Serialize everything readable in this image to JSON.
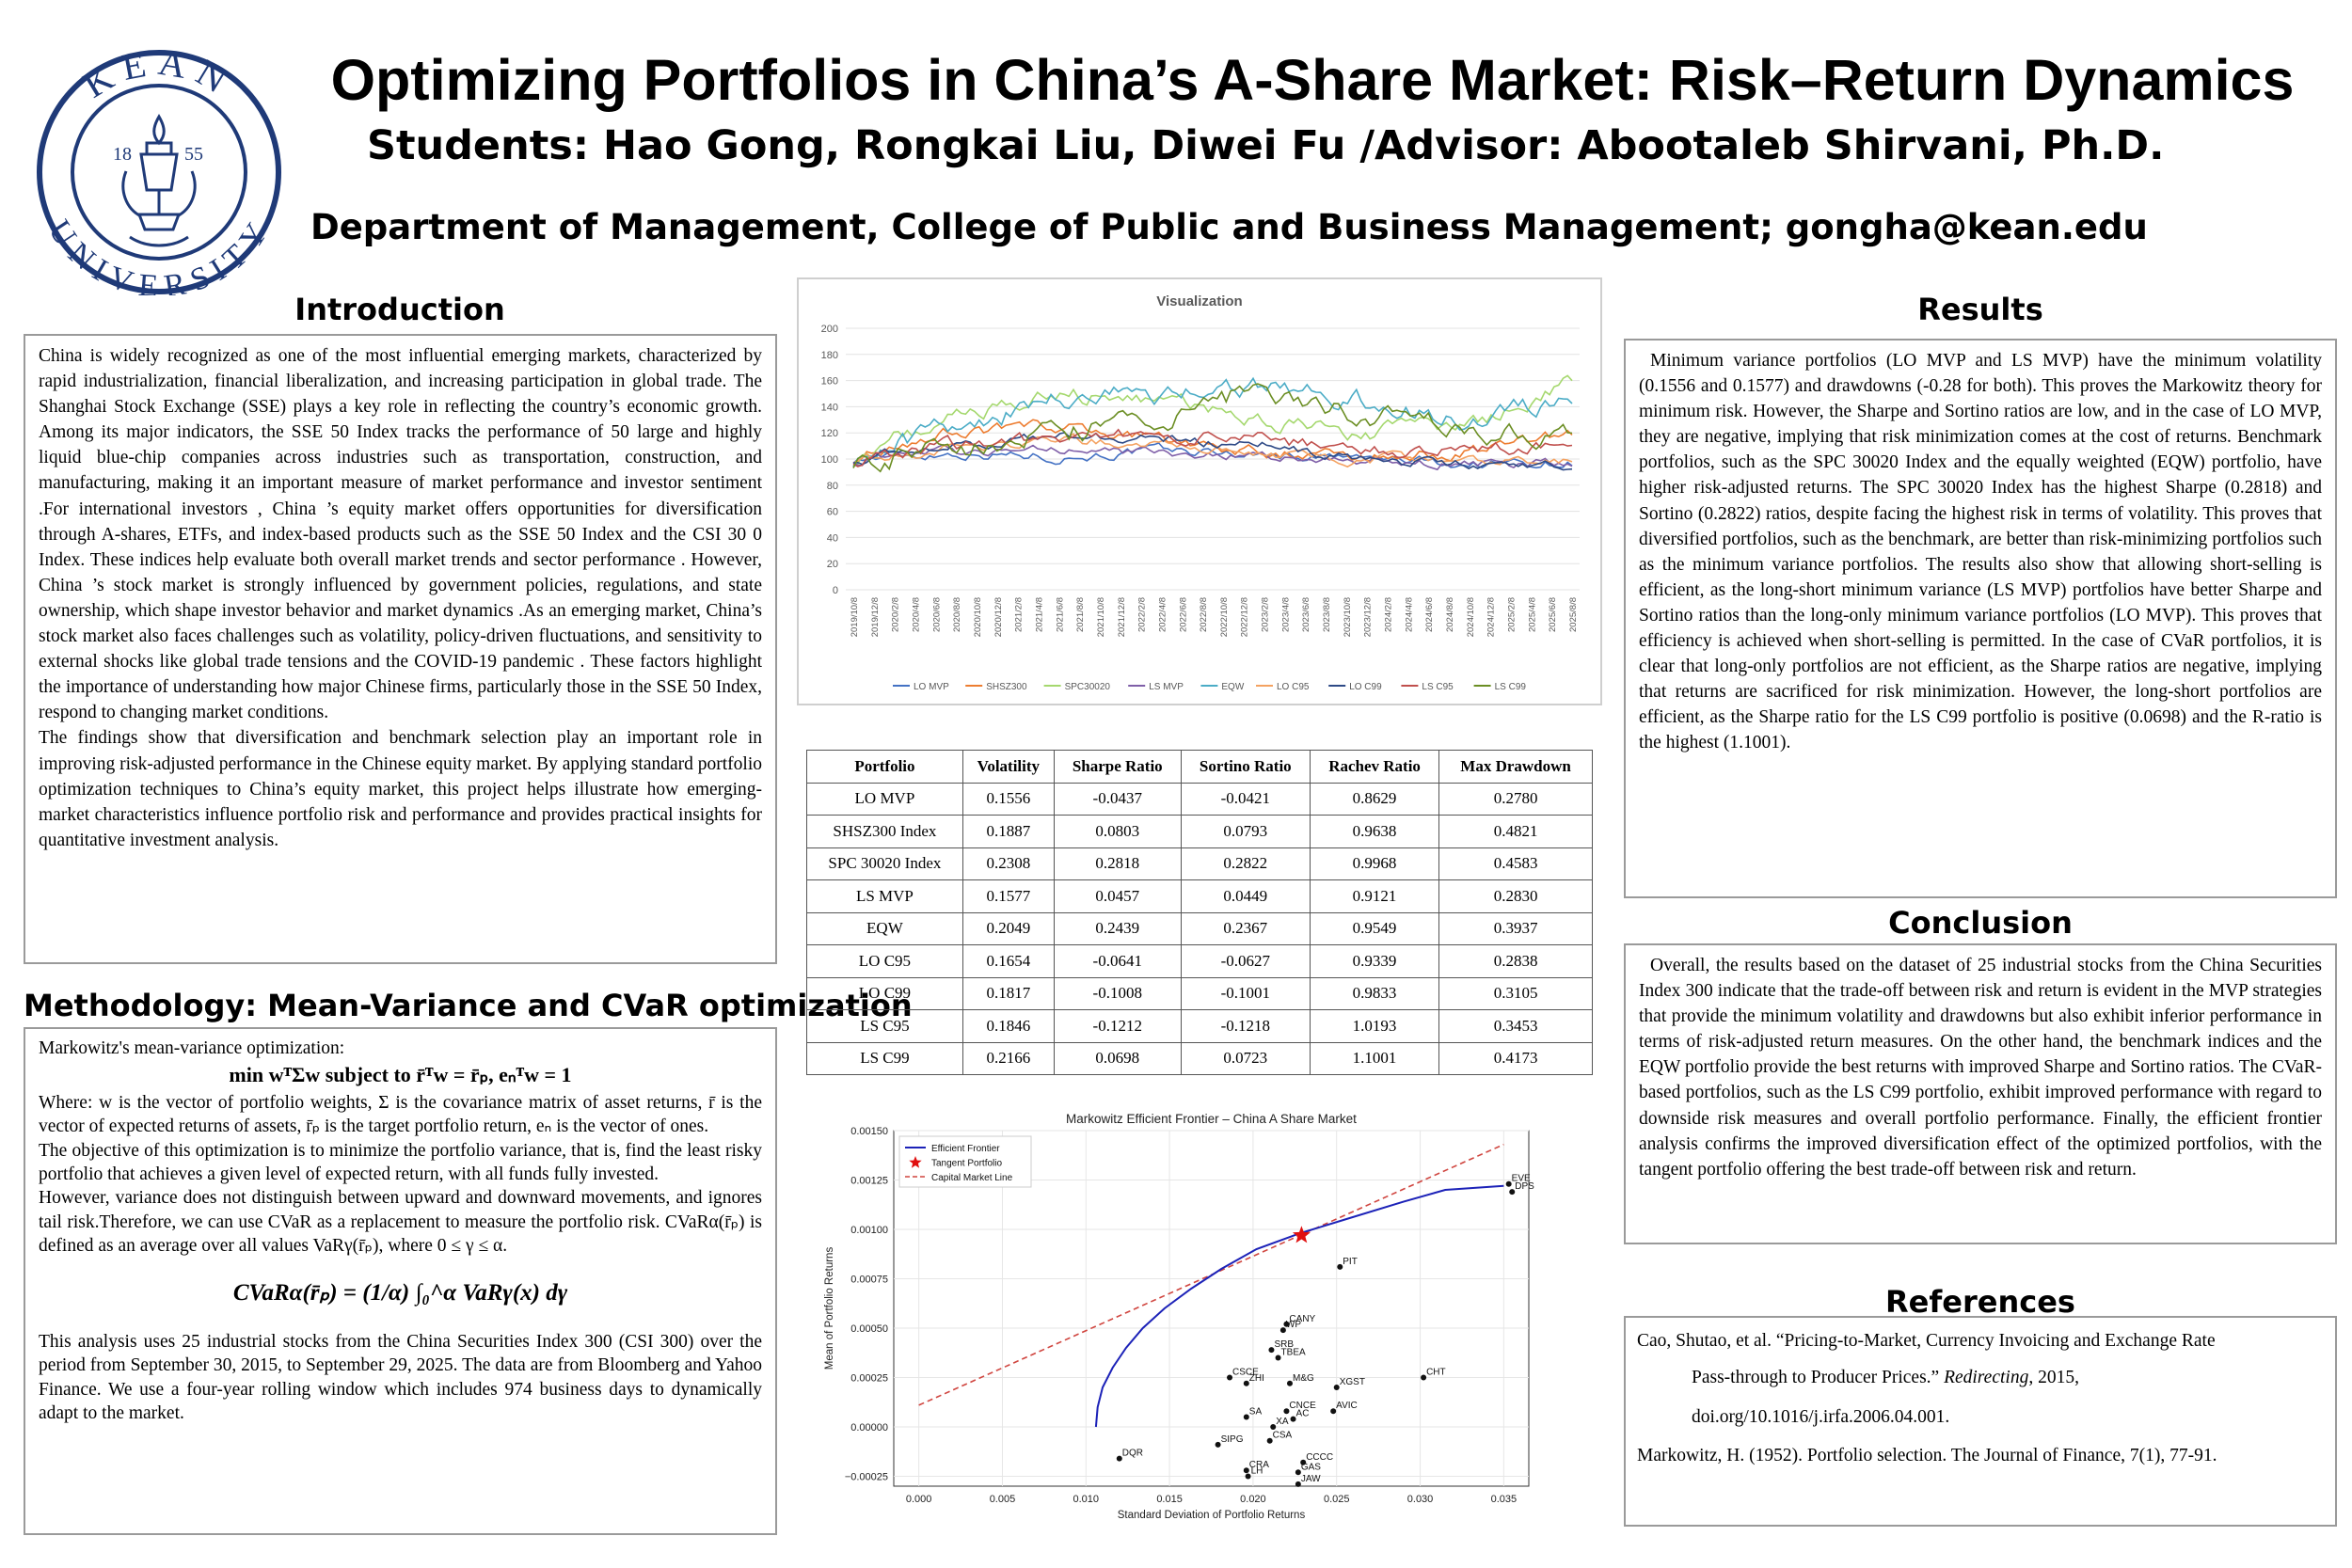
{
  "header": {
    "title": "Optimizing  Portfolios  in China’s A-Share  Market:  Risk–Return  Dynamics",
    "subtitle": "Students:  Hao Gong,  Rongkai  Liu,  Diwei  Fu /Advisor: Abootaleb Shirvani,  Ph.D.",
    "department": "Department of  Management, College of  Public and  Business  Management; gongha@kean.edu",
    "logo": {
      "ring_top": "KEAN",
      "ring_bottom": "UNIVERSITY",
      "year_left": "18",
      "year_right": "55"
    }
  },
  "introduction": {
    "heading": "Introduction",
    "paragraphs": [
      "China is widely recognized as one of the most influential emerging markets, characterized by rapid industrialization, financial liberalization, and increasing participation in global trade. The Shanghai Stock Exchange (SSE) plays a key role in reflecting the country’s economic growth. Among its major indicators, the SSE 50 Index tracks the performance of 50 large and highly liquid blue-chip companies across industries such as transportation, construction, and manufacturing, making it an important measure of market performance and investor sentiment .For international investors , China ’s equity market offers opportunities for diversification through A-shares, ETFs, and index-based products such as the SSE 50 Index and the CSI 30 0 Index. These indices help evaluate both overall market trends and sector performance . However, China ’s stock market is strongly influenced by government policies, regulations, and state ownership, which shape investor behavior and market dynamics .As an emerging market, China’s stock market also faces challenges such as volatility, policy-driven fluctuations, and sensitivity to external shocks like global trade tensions and the COVID-19 pandemic . These factors highlight the importance of understanding how major Chinese firms, particularly those in the SSE 50 Index, respond to changing market conditions.",
      "The findings show that diversification and benchmark selection play an important role in improving risk-adjusted performance in the Chinese equity market. By applying standard portfolio optimization techniques to China’s equity market, this project helps illustrate how emerging-market characteristics influence portfolio risk and performance and provides practical insights for quantitative investment analysis."
    ]
  },
  "methodology": {
    "heading": "Methodology:  Mean-Variance and CVaR optimization",
    "intro": "Markowitz's mean-variance optimization:",
    "formula": "min  wᵀΣw    subject to r̄ᵀw = r̄ₚ, eₙᵀw = 1",
    "where": "Where: w is the vector of portfolio weights, Σ is the covariance matrix of asset returns, r̄ is the vector of expected returns of assets, r̄ₚ is the target portfolio return, eₙ is the vector of ones.",
    "objective": "The objective of this optimization is to minimize the portfolio variance, that is, find the least risky portfolio that achieves a given level of expected return, with all funds fully invested.",
    "however": "However, variance does not distinguish between upward and downward movements, and ignores tail risk.Therefore, we can use CVaR as a replacement to measure the portfolio risk. CVaRα(r̄ₚ) is defined as an average over all values VaRγ(r̄ₚ), where 0 ≤ γ ≤ α.",
    "cvar_formula": "CVaRα(r̄ₚ) = (1/α) ∫₀^α VaRγ(x) dγ",
    "data": "This analysis uses 25 industrial stocks from the China Securities Index 300 (CSI 300) over the period from September 30, 2015, to September 29, 2025. The data are from Bloomberg and Yahoo Finance. We use a four-year rolling window which includes 974 business days to dynamically adapt to the market."
  },
  "visualization": {
    "title": "Visualization",
    "y_ticks": [
      "200",
      "180",
      "160",
      "140",
      "120",
      "100",
      "80",
      "60",
      "40",
      "20",
      "0"
    ],
    "x_ticks": [
      "2019/10/8",
      "2019/12/8",
      "2020/2/8",
      "2020/4/8",
      "2020/6/8",
      "2020/8/8",
      "2020/10/8",
      "2020/12/8",
      "2021/2/8",
      "2021/4/8",
      "2021/6/8",
      "2021/8/8",
      "2021/10/8",
      "2021/12/8",
      "2022/2/8",
      "2022/4/8",
      "2022/6/8",
      "2022/8/8",
      "2022/10/8",
      "2022/12/8",
      "2023/2/8",
      "2023/4/8",
      "2023/6/8",
      "2023/8/8",
      "2023/10/8",
      "2023/12/8",
      "2024/2/8",
      "2024/4/8",
      "2024/6/8",
      "2024/8/8",
      "2024/10/8",
      "2024/12/8",
      "2025/2/8",
      "2025/4/8",
      "2025/6/8",
      "2025/8/8"
    ],
    "legend": [
      {
        "name": "LO MVP",
        "color": "#4472c4"
      },
      {
        "name": "SHSZ300",
        "color": "#ed7d31"
      },
      {
        "name": "SPC30020",
        "color": "#a5d86e"
      },
      {
        "name": "LS MVP",
        "color": "#7f5fa8"
      },
      {
        "name": "EQW",
        "color": "#4bacc6"
      },
      {
        "name": "LO C95",
        "color": "#f4a261"
      },
      {
        "name": "LO C99",
        "color": "#2e4a86"
      },
      {
        "name": "LS C95",
        "color": "#c0504d"
      },
      {
        "name": "LS C99",
        "color": "#6b8e23"
      }
    ]
  },
  "results_table": {
    "headers": [
      "Portfolio",
      "Volatility",
      "Sharpe Ratio",
      "Sortino Ratio",
      "Rachev Ratio",
      "Max Drawdown"
    ],
    "rows": [
      [
        "LO MVP",
        "0.1556",
        "-0.0437",
        "-0.0421",
        "0.8629",
        "0.2780"
      ],
      [
        "SHSZ300 Index",
        "0.1887",
        "0.0803",
        "0.0793",
        "0.9638",
        "0.4821"
      ],
      [
        "SPC 30020 Index",
        "0.2308",
        "0.2818",
        "0.2822",
        "0.9968",
        "0.4583"
      ],
      [
        "LS MVP",
        "0.1577",
        "0.0457",
        "0.0449",
        "0.9121",
        "0.2830"
      ],
      [
        "EQW",
        "0.2049",
        "0.2439",
        "0.2367",
        "0.9549",
        "0.3937"
      ],
      [
        "LO C95",
        "0.1654",
        "-0.0641",
        "-0.0627",
        "0.9339",
        "0.2838"
      ],
      [
        "LO C99",
        "0.1817",
        "-0.1008",
        "-0.1001",
        "0.9833",
        "0.3105"
      ],
      [
        "LS C95",
        "0.1846",
        "-0.1212",
        "-0.1218",
        "1.0193",
        "0.3453"
      ],
      [
        "LS C99",
        "0.2166",
        "0.0698",
        "0.0723",
        "1.1001",
        "0.4173"
      ]
    ]
  },
  "chart_data": {
    "type": "scatter",
    "title": "Markowitz Efficient Frontier – China A Share Market",
    "xlabel": "Standard Deviation of Portfolio Returns",
    "ylabel": "Mean of Portfolio Returns",
    "xlim": [
      -0.0015,
      0.0365
    ],
    "ylim": [
      -0.0003,
      0.0015
    ],
    "x_ticks": [
      0.0,
      0.005,
      0.01,
      0.015,
      0.02,
      0.025,
      0.03,
      0.035
    ],
    "x_tick_labels": [
      "0.000",
      "0.005",
      "0.010",
      "0.015",
      "0.020",
      "0.025",
      "0.030",
      "0.035"
    ],
    "y_ticks": [
      -0.00025,
      0.0,
      0.00025,
      0.0005,
      0.00075,
      0.001,
      0.00125,
      0.0015
    ],
    "y_tick_labels": [
      "−0.00025",
      "0.00000",
      "0.00025",
      "0.00050",
      "0.00075",
      "0.00100",
      "0.00125",
      "0.00150"
    ],
    "grid": true,
    "legend_position": "top-left",
    "legend": [
      "Efficient Frontier",
      "Tangent Portfolio",
      "Capital Market Line"
    ],
    "frontier": [
      [
        0.0106,
        0.0
      ],
      [
        0.0107,
        0.0001
      ],
      [
        0.011,
        0.0002
      ],
      [
        0.0116,
        0.0003
      ],
      [
        0.0124,
        0.0004
      ],
      [
        0.0134,
        0.0005
      ],
      [
        0.0147,
        0.0006
      ],
      [
        0.0163,
        0.0007
      ],
      [
        0.0181,
        0.0008
      ],
      [
        0.0202,
        0.0009
      ],
      [
        0.0228,
        0.00098
      ],
      [
        0.0255,
        0.00105
      ],
      [
        0.029,
        0.00114
      ],
      [
        0.0315,
        0.0012
      ],
      [
        0.035,
        0.00122
      ]
    ],
    "cml": [
      [
        0.0,
        0.00011
      ],
      [
        0.035,
        0.00143
      ]
    ],
    "tangent": [
      0.0229,
      0.00097
    ],
    "points": [
      {
        "label": "EVE",
        "x": 0.0353,
        "y": 0.00123
      },
      {
        "label": "DPS",
        "x": 0.0355,
        "y": 0.00119
      },
      {
        "label": "PIT",
        "x": 0.0252,
        "y": 0.00081
      },
      {
        "label": "CANY",
        "x": 0.022,
        "y": 0.00052
      },
      {
        "label": "WP",
        "x": 0.0218,
        "y": 0.00049
      },
      {
        "label": "SRB",
        "x": 0.0211,
        "y": 0.00039
      },
      {
        "label": "TBEA",
        "x": 0.0215,
        "y": 0.00035
      },
      {
        "label": "CSCE",
        "x": 0.0186,
        "y": 0.00025
      },
      {
        "label": "ZHI",
        "x": 0.0196,
        "y": 0.00022
      },
      {
        "label": "M&G",
        "x": 0.0222,
        "y": 0.00022
      },
      {
        "label": "XGST",
        "x": 0.025,
        "y": 0.0002
      },
      {
        "label": "CHT",
        "x": 0.0302,
        "y": 0.00025
      },
      {
        "label": "CNCE",
        "x": 0.022,
        "y": 8e-05
      },
      {
        "label": "SA",
        "x": 0.0196,
        "y": 5e-05
      },
      {
        "label": "AVIC",
        "x": 0.0248,
        "y": 8e-05
      },
      {
        "label": "AC",
        "x": 0.0224,
        "y": 4e-05
      },
      {
        "label": "XA",
        "x": 0.0212,
        "y": 0.0
      },
      {
        "label": "CSA",
        "x": 0.021,
        "y": -7e-05
      },
      {
        "label": "SIPG",
        "x": 0.0179,
        "y": -9e-05
      },
      {
        "label": "DQR",
        "x": 0.012,
        "y": -0.00016
      },
      {
        "label": "CCCC",
        "x": 0.023,
        "y": -0.00018
      },
      {
        "label": "CRA",
        "x": 0.0196,
        "y": -0.00022
      },
      {
        "label": "GAS",
        "x": 0.0227,
        "y": -0.00023
      },
      {
        "label": "LH",
        "x": 0.0197,
        "y": -0.00025
      },
      {
        "label": "JAW",
        "x": 0.0227,
        "y": -0.00029
      }
    ]
  },
  "results": {
    "heading": "Results",
    "text": "Minimum variance portfolios (LO MVP and LS MVP) have the minimum volatility (0.1556 and 0.1577) and drawdowns (-0.28 for both). This proves the Markowitz theory for minimum risk. However, the Sharpe and Sortino ratios are low, and in the case of LO MVP, they are negative, implying that risk minimization comes at the cost of returns. Benchmark portfolios, such as the SPC 30020 Index and the equally weighted (EQW) portfolio, have higher risk-adjusted returns. The SPC 30020 Index has the highest Sharpe (0.2818) and Sortino (0.2822) ratios, despite facing the highest risk in terms of volatility. This proves that diversified portfolios, such as the benchmark, are better than risk-minimizing portfolios such as the minimum variance portfolios. The results also show that allowing short-selling is efficient, as the long-short minimum variance (LS MVP) portfolios have better Sharpe and Sortino ratios than the long-only minimum variance portfolios (LO MVP). This proves that efficiency is achieved when short-selling is permitted. In the case of CVaR portfolios, it is clear that long-only portfolios are not efficient, as the Sharpe ratios are negative, implying that returns are sacrificed for risk minimization. However, the long-short portfolios are efficient, as the Sharpe ratio for the LS C99 portfolio is positive (0.0698) and the R-ratio is the highest (1.1001)."
  },
  "conclusion": {
    "heading": "Conclusion",
    "text": "Overall, the results based on the dataset of 25 industrial stocks from the China Securities Index 300 indicate that the trade-off between risk and return is evident in the MVP strategies that provide the minimum volatility and drawdowns but also exhibit inferior performance in terms of risk-adjusted return measures. On the other hand, the benchmark indices and the EQW portfolio provide the best returns with improved Sharpe and Sortino ratios. The CVaR-based portfolios, such as the LS C99 portfolio, exhibit improved performance with regard to downside risk measures and overall portfolio performance. Finally, the efficient frontier analysis confirms the improved diversification effect of the optimized portfolios, with the tangent portfolio offering the best trade-off between risk and return."
  },
  "references": {
    "heading": "References",
    "ref1_a": "Cao, Shutao, et al. “Pricing-to-Market, Currency Invoicing and Exchange Rate",
    "ref1_b": "Pass-through to Producer Prices.” ",
    "ref1_journal": "Redirecting",
    "ref1_c": ", 2015,",
    "ref1_doi": "doi.org/10.1016/j.irfa.2006.04.001.",
    "ref2": "Markowitz, H. (1952). Portfolio selection. The Journal of Finance, 7(1), 77-91."
  }
}
